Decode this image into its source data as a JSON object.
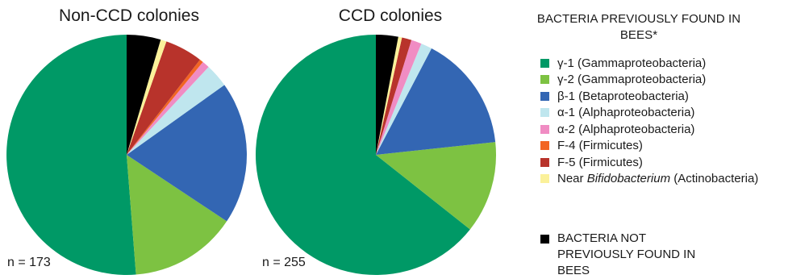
{
  "legend": {
    "heading": "BACTERIA PREVIOUSLY FOUND IN BEES*",
    "items": [
      {
        "label": "γ-1 (Gammaproteobacteria)",
        "color": "#009966"
      },
      {
        "label": "γ-2 (Gammaproteobacteria)",
        "color": "#7dc242"
      },
      {
        "label": "β-1 (Betaproteobacteria)",
        "color": "#3366b3"
      },
      {
        "label": "α-1 (Alphaproteobacteria)",
        "color": "#bfe6ee"
      },
      {
        "label": "α-2 (Alphaproteobacteria)",
        "color": "#f08cc3"
      },
      {
        "label": "F-4 (Firmicutes)",
        "color": "#f26522"
      },
      {
        "label": "F-5 (Firmicutes)",
        "color": "#b8332b"
      }
    ],
    "near": {
      "prefix": "Near ",
      "genus": "Bifidobacterium",
      "suffix": " (Actinobacteria)",
      "color": "#fbf19a"
    },
    "other": {
      "label": "BACTERIA NOT PREVIOUSLY FOUND IN BEES",
      "color": "#000000"
    }
  },
  "chart_data": [
    {
      "type": "pie",
      "title": "Non-CCD colonies",
      "n_label": "n = 173",
      "categories": [
        "γ-1",
        "γ-2",
        "β-1",
        "α-1",
        "α-2",
        "F-4",
        "F-5",
        "Near Bifidobacterium",
        "Not previously found"
      ],
      "values": [
        51.5,
        14.5,
        19.3,
        3.2,
        1.0,
        0.5,
        5.1,
        0.8,
        4.6
      ],
      "colors": [
        "#009966",
        "#7dc242",
        "#3366b3",
        "#bfe6ee",
        "#f08cc3",
        "#f26522",
        "#b8332b",
        "#fbf19a",
        "#000000"
      ]
    },
    {
      "type": "pie",
      "title": "CCD colonies",
      "n_label": "n = 255",
      "categories": [
        "γ-1",
        "γ-2",
        "β-1",
        "α-1",
        "α-2",
        "F-4",
        "F-5",
        "Near Bifidobacterium",
        "Not previously found"
      ],
      "values": [
        64.6,
        12.4,
        15.7,
        1.5,
        1.4,
        0.0,
        1.3,
        0.5,
        3.0
      ],
      "colors": [
        "#009966",
        "#7dc242",
        "#3366b3",
        "#bfe6ee",
        "#f08cc3",
        "#f26522",
        "#b8332b",
        "#fbf19a",
        "#000000"
      ]
    }
  ]
}
